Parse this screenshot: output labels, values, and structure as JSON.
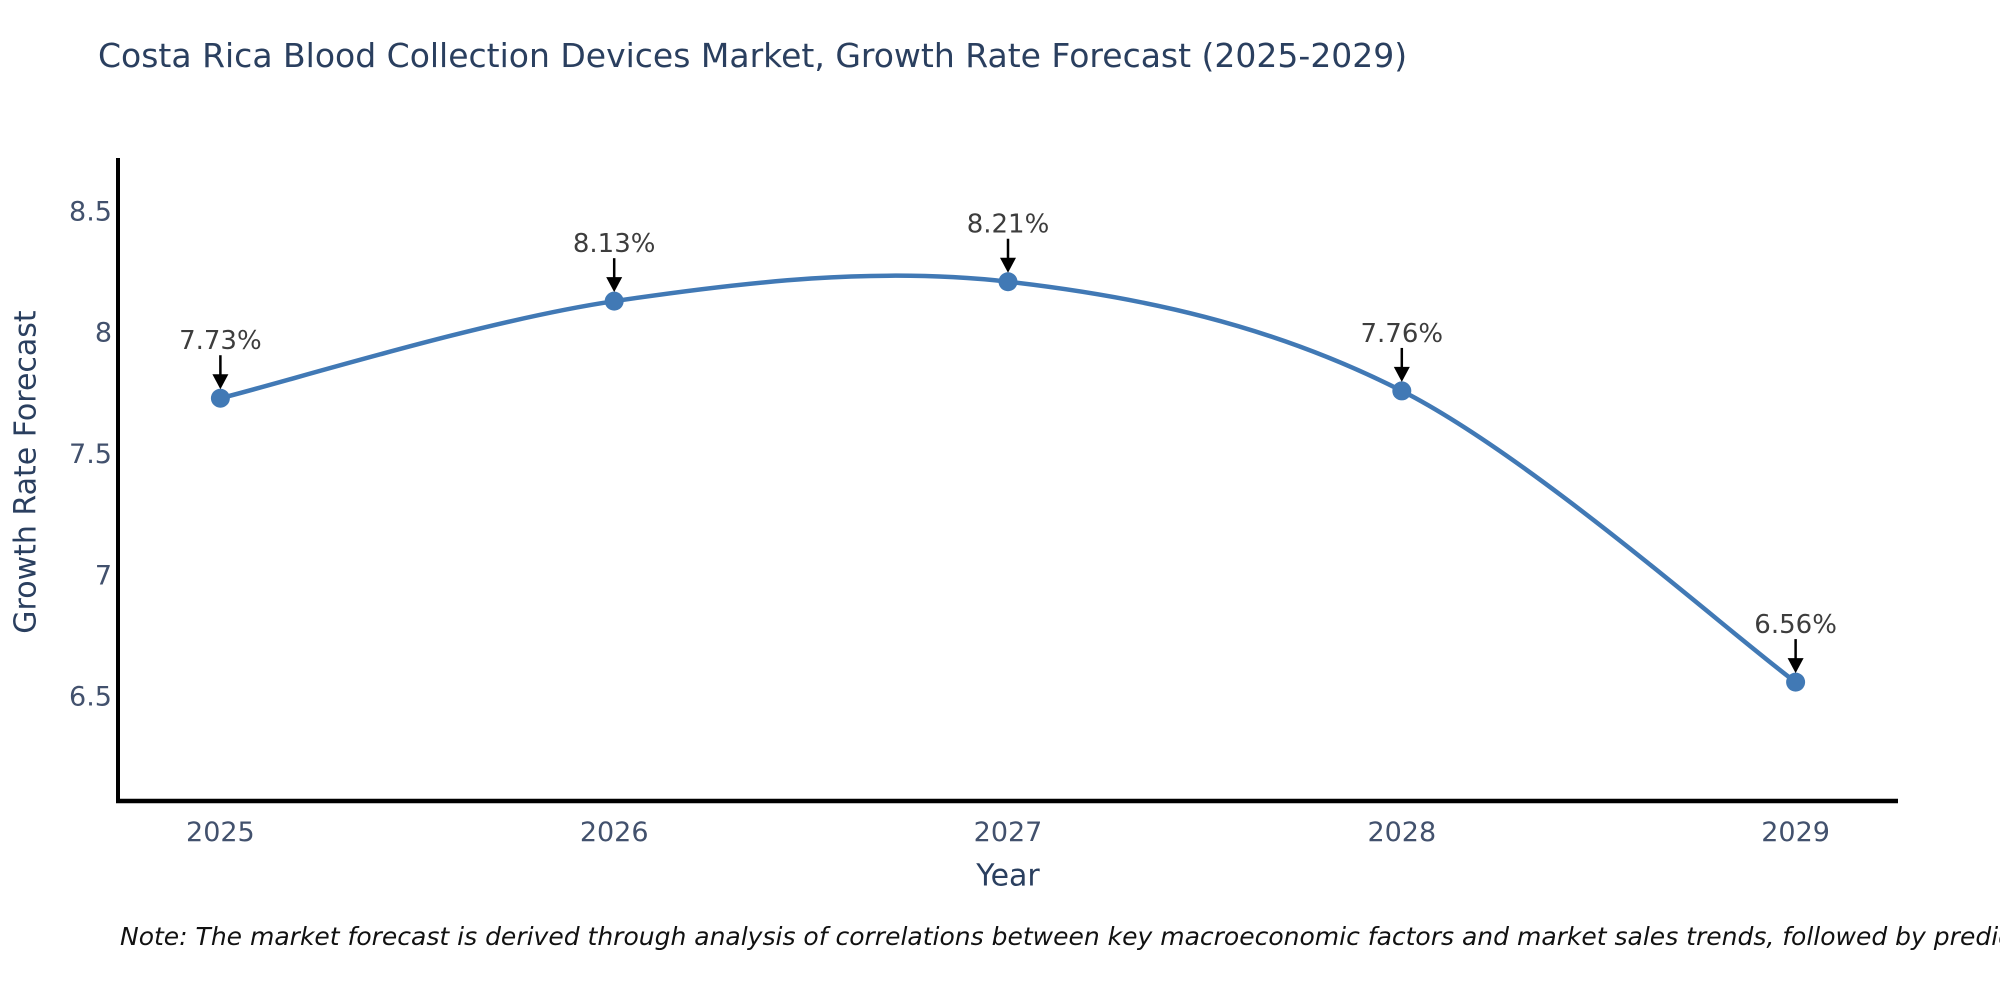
{
  "title": "Costa Rica Blood Collection Devices Market, Growth Rate Forecast (2025-2029)",
  "note": "Note: The market forecast is derived through analysis of correlations between key macroeconomic factors and market sales trends, followed by predictive modeling to project future sales",
  "chart_data": {
    "type": "line",
    "line_shape": "spline",
    "x": [
      2025,
      2026,
      2027,
      2028,
      2029
    ],
    "x_tick_labels": [
      "2025",
      "2026",
      "2027",
      "2028",
      "2029"
    ],
    "series": [
      {
        "name": "Growth Rate Forecast",
        "values": [
          7.73,
          8.13,
          8.21,
          7.76,
          6.56
        ]
      }
    ],
    "point_labels": [
      "7.73%",
      "8.13%",
      "8.21%",
      "7.76%",
      "6.56%"
    ],
    "xlabel": "Year",
    "ylabel": "Growth Rate Forecast",
    "yticks": [
      6.5,
      7,
      7.5,
      8,
      8.5
    ],
    "ytick_labels": [
      "6.5",
      "7",
      "7.5",
      "8",
      "8.5"
    ],
    "ylim": [
      6.07,
      8.72
    ],
    "xlim": [
      2024.74,
      2029.26
    ],
    "grid": false,
    "legend_position": "none",
    "colors": {
      "line": "#4179b5",
      "marker": "#4179b5",
      "annotation_text": "#3d3d3d",
      "arrow": "#000000",
      "axis_line": "#000000",
      "tick_label": "#42516d",
      "title": "#2a3f5f"
    }
  }
}
